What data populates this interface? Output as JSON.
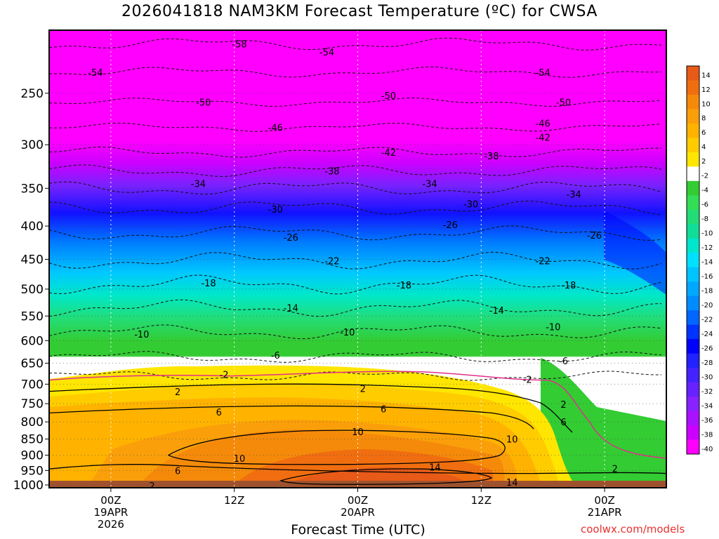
{
  "title": "2026041818 NAM3KM Forecast Temperature (ºC) for CWSA",
  "xlabel": "Forecast Time (UTC)",
  "credit": "coolwx.com/models",
  "colors": {
    "plot_border": "#000000",
    "ground": "#a0522d",
    "grid": "#ffffff"
  },
  "chart_data": {
    "type": "heatmap",
    "variable": "Temperature (ºC)",
    "y_axis": {
      "ticks": [
        "250",
        "300",
        "350",
        "400",
        "450",
        "500",
        "550",
        "600",
        "650",
        "700",
        "750",
        "800",
        "850",
        "900",
        "950",
        "1000"
      ],
      "values": [
        250,
        300,
        350,
        400,
        450,
        500,
        550,
        600,
        650,
        700,
        750,
        800,
        850,
        900,
        950,
        1000
      ],
      "range": [
        200,
        1010
      ],
      "scale": "log",
      "reversed": true
    },
    "x_axis": {
      "ticks": [
        {
          "line1": "00Z",
          "line2": "19APR",
          "line3": "2026",
          "hour": 6
        },
        {
          "line1": "12Z",
          "line2": "",
          "line3": "",
          "hour": 18
        },
        {
          "line1": "00Z",
          "line2": "20APR",
          "line3": "",
          "hour": 30
        },
        {
          "line1": "12Z",
          "line2": "",
          "line3": "",
          "hour": 42
        },
        {
          "line1": "00Z",
          "line2": "21APR",
          "line3": "",
          "hour": 54
        }
      ],
      "range_hours": [
        0,
        60
      ]
    },
    "grid": "dotted",
    "legend": {
      "placement": "right",
      "labels": [
        "14",
        "12",
        "10",
        "8",
        "6",
        "4",
        "2",
        "-2",
        "-4",
        "-6",
        "-8",
        "-10",
        "-12",
        "-14",
        "-16",
        "-18",
        "-20",
        "-22",
        "-24",
        "-26",
        "-28",
        "-30",
        "-32",
        "-34",
        "-36",
        "-38",
        "-40"
      ],
      "colors": [
        "#e85a18",
        "#f06e10",
        "#f58a0a",
        "#fa9f0a",
        "#ffb300",
        "#ffcc00",
        "#ffe600",
        "#ffffff",
        "#33cc33",
        "#33dd55",
        "#22dd77",
        "#11dd99",
        "#00e6cc",
        "#00e0ff",
        "#00c4ff",
        "#00a8ff",
        "#008cff",
        "#0066ff",
        "#0033ff",
        "#0000ff",
        "#2222ff",
        "#4422ff",
        "#6622ff",
        "#8822ff",
        "#aa11ff",
        "#cc00ff",
        "#ff00ff"
      ]
    },
    "contour_levels": [
      {
        "label": "-58",
        "style": "dashed"
      },
      {
        "label": "-54",
        "style": "dashed"
      },
      {
        "label": "-50",
        "style": "dashed"
      },
      {
        "label": "-46",
        "style": "dashed"
      },
      {
        "label": "-42",
        "style": "dashed"
      },
      {
        "label": "-38",
        "style": "dashed"
      },
      {
        "label": "-34",
        "style": "dashed"
      },
      {
        "label": "-30",
        "style": "dashed"
      },
      {
        "label": "-26",
        "style": "dashed"
      },
      {
        "label": "-22",
        "style": "dashed"
      },
      {
        "label": "-18",
        "style": "dashed"
      },
      {
        "label": "-14",
        "style": "dashed"
      },
      {
        "label": "-10",
        "style": "dashed"
      },
      {
        "label": "-6",
        "style": "dashed"
      },
      {
        "label": "-2",
        "style": "dashed"
      },
      {
        "label": "0",
        "style": "magenta"
      },
      {
        "label": "2",
        "style": "solid"
      },
      {
        "label": "6",
        "style": "solid"
      },
      {
        "label": "10",
        "style": "solid"
      },
      {
        "label": "14",
        "style": "solid"
      }
    ],
    "contour_labels": [
      {
        "text": "-58",
        "hour": 18.5,
        "p": 210
      },
      {
        "text": "-54",
        "hour": 4.5,
        "p": 232
      },
      {
        "text": "-54",
        "hour": 27,
        "p": 216
      },
      {
        "text": "-54",
        "hour": 48,
        "p": 232
      },
      {
        "text": "-50",
        "hour": 15,
        "p": 258
      },
      {
        "text": "-50",
        "hour": 33,
        "p": 252
      },
      {
        "text": "-50",
        "hour": 50,
        "p": 258
      },
      {
        "text": "-46",
        "hour": 22,
        "p": 282
      },
      {
        "text": "-46",
        "hour": 48,
        "p": 278
      },
      {
        "text": "-42",
        "hour": 33,
        "p": 308
      },
      {
        "text": "-42",
        "hour": 48,
        "p": 292
      },
      {
        "text": "-38",
        "hour": 27.5,
        "p": 329
      },
      {
        "text": "-38",
        "hour": 43,
        "p": 312
      },
      {
        "text": "-34",
        "hour": 14.5,
        "p": 344
      },
      {
        "text": "-34",
        "hour": 37,
        "p": 344
      },
      {
        "text": "-34",
        "hour": 51,
        "p": 357
      },
      {
        "text": "-30",
        "hour": 22,
        "p": 377
      },
      {
        "text": "-30",
        "hour": 41,
        "p": 370
      },
      {
        "text": "-26",
        "hour": 23.5,
        "p": 416
      },
      {
        "text": "-26",
        "hour": 39,
        "p": 398
      },
      {
        "text": "-26",
        "hour": 53,
        "p": 413
      },
      {
        "text": "-22",
        "hour": 27.5,
        "p": 452
      },
      {
        "text": "-22",
        "hour": 48,
        "p": 452
      },
      {
        "text": "-18",
        "hour": 15.5,
        "p": 489
      },
      {
        "text": "-18",
        "hour": 34.5,
        "p": 493
      },
      {
        "text": "-18",
        "hour": 50.5,
        "p": 493
      },
      {
        "text": "-14",
        "hour": 23.5,
        "p": 534
      },
      {
        "text": "-14",
        "hour": 43.5,
        "p": 539
      },
      {
        "text": "-10",
        "hour": 9,
        "p": 586
      },
      {
        "text": "-10",
        "hour": 29,
        "p": 582
      },
      {
        "text": "-10",
        "hour": 49,
        "p": 571
      },
      {
        "text": "-6",
        "hour": 22,
        "p": 632
      },
      {
        "text": "-6",
        "hour": 50,
        "p": 644
      },
      {
        "text": "-2",
        "hour": 17,
        "p": 676
      },
      {
        "text": "-2",
        "hour": 46.5,
        "p": 688
      },
      {
        "text": "2",
        "hour": 12.5,
        "p": 719
      },
      {
        "text": "2",
        "hour": 30.5,
        "p": 711
      },
      {
        "text": "2",
        "hour": 50,
        "p": 752
      },
      {
        "text": "2",
        "hour": 55,
        "p": 943
      },
      {
        "text": "2",
        "hour": 10,
        "p": 1003
      },
      {
        "text": "6",
        "hour": 16.5,
        "p": 772
      },
      {
        "text": "6",
        "hour": 32.5,
        "p": 764
      },
      {
        "text": "6",
        "hour": 50,
        "p": 800
      },
      {
        "text": "6",
        "hour": 12.5,
        "p": 950
      },
      {
        "text": "10",
        "hour": 30,
        "p": 828
      },
      {
        "text": "10",
        "hour": 45,
        "p": 850
      },
      {
        "text": "10",
        "hour": 18.5,
        "p": 910
      },
      {
        "text": "14",
        "hour": 37.5,
        "p": 939
      },
      {
        "text": "14",
        "hour": 45,
        "p": 990
      }
    ]
  }
}
